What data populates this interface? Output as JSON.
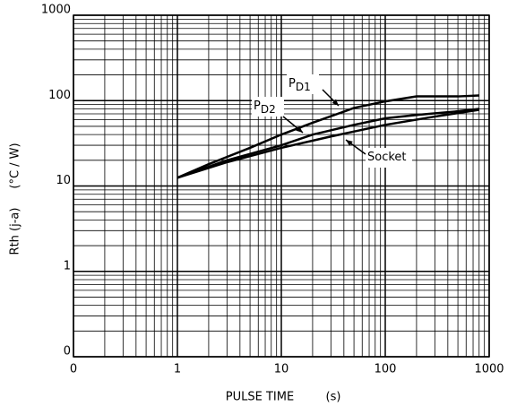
{
  "chart_data": {
    "type": "line",
    "x_label": "PULSE TIME",
    "x_unit": "(s)",
    "y_label": "Rth (j-a)",
    "y_unit": "(°C / W)",
    "xscale": "log",
    "yscale": "log",
    "grid": true,
    "color": "#000000",
    "xlim": [
      0.1,
      1000
    ],
    "ylim": [
      0.1,
      1000
    ],
    "xticks": [
      {
        "value": 0.1,
        "label": "0"
      },
      1,
      10,
      100,
      1000
    ],
    "yticks": [
      {
        "value": 0.1,
        "label": "0"
      },
      1,
      10,
      100,
      1000
    ],
    "series": [
      {
        "x": [
          1,
          2,
          5,
          10,
          20,
          50,
          100,
          200,
          500,
          800
        ],
        "values": [
          12.5,
          18,
          28,
          40,
          55,
          82,
          98,
          112,
          112,
          115
        ]
      },
      {
        "x": [
          1,
          3,
          10,
          20,
          50,
          100,
          200,
          500,
          800
        ],
        "values": [
          12.5,
          20,
          30,
          40,
          52,
          62,
          68,
          75,
          80
        ]
      },
      {
        "x": [
          1,
          3,
          10,
          30,
          100,
          300,
          800
        ],
        "values": [
          12.5,
          19,
          28,
          38,
          52,
          65,
          78
        ]
      }
    ],
    "annotations": [
      {
        "text": "P",
        "sub": "D1"
      },
      {
        "text": "P",
        "sub": "D2"
      },
      {
        "text": "Socket"
      }
    ]
  }
}
